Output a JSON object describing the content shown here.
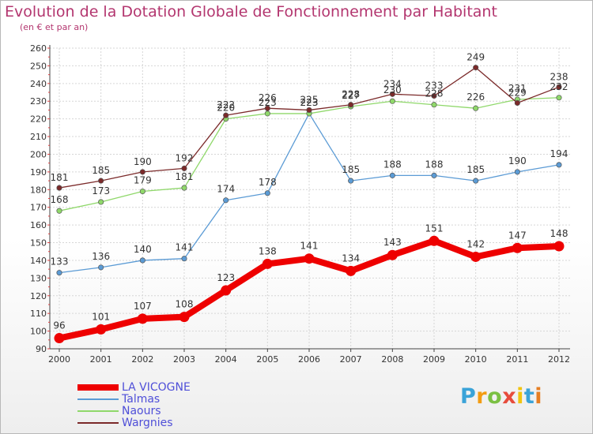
{
  "chart_data": {
    "type": "line",
    "title": "Evolution de la Dotation Globale de Fonctionnement par Habitant",
    "subtitle": "(en € et par an)",
    "xlabel": "",
    "ylabel": "",
    "ylim": [
      90,
      260
    ],
    "yticks": [
      90,
      100,
      110,
      120,
      130,
      140,
      150,
      160,
      170,
      180,
      190,
      200,
      210,
      220,
      230,
      240,
      250,
      260
    ],
    "categories": [
      "2000",
      "2001",
      "2002",
      "2003",
      "2004",
      "2005",
      "2006",
      "2007",
      "2008",
      "2009",
      "2010",
      "2011",
      "2012"
    ],
    "series": [
      {
        "name": "LA VICOGNE",
        "color": "#ee0000",
        "values": [
          96,
          101,
          107,
          108,
          123,
          138,
          141,
          134,
          143,
          151,
          142,
          147,
          148
        ]
      },
      {
        "name": "Talmas",
        "color": "#5b9bd5",
        "values": [
          133,
          136,
          140,
          141,
          174,
          178,
          223,
          185,
          188,
          188,
          185,
          190,
          194
        ]
      },
      {
        "name": "Naours",
        "color": "#8fd86a",
        "values": [
          168,
          173,
          179,
          181,
          220,
          223,
          223,
          227,
          230,
          228,
          226,
          231,
          232
        ]
      },
      {
        "name": "Wargnies",
        "color": "#7b2a2a",
        "values": [
          181,
          185,
          190,
          192,
          222,
          226,
          225,
          228,
          234,
          233,
          249,
          229,
          238
        ]
      }
    ]
  },
  "logo": {
    "letters": [
      "P",
      "r",
      "o",
      "x",
      "i",
      "t",
      "i"
    ],
    "colors": [
      "#3aa3d8",
      "#f39c12",
      "#7bc043",
      "#e74c3c",
      "#f1c40f",
      "#3aa3d8",
      "#e67e22"
    ]
  }
}
